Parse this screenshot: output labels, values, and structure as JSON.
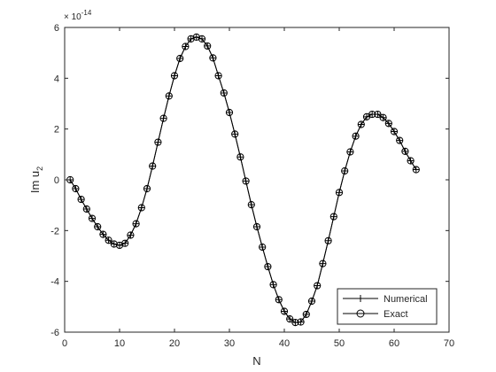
{
  "chart_data": {
    "type": "line",
    "xlabel": "N",
    "ylabel_main": "Im u",
    "ylabel_sub": "2",
    "exponent_prefix": "× 10",
    "exponent_power": "-14",
    "xlim": [
      0,
      70
    ],
    "ylim": [
      -6,
      6
    ],
    "xticks": [
      0,
      10,
      20,
      30,
      40,
      50,
      60,
      70
    ],
    "yticks": [
      -6,
      -4,
      -2,
      0,
      2,
      4,
      6
    ],
    "xtick_labels": [
      "0",
      "10",
      "20",
      "30",
      "40",
      "50",
      "60",
      "70"
    ],
    "ytick_labels": [
      "-6",
      "-4",
      "-2",
      "0",
      "2",
      "4",
      "6"
    ],
    "grid": false,
    "legend_position": "bottom-right",
    "series": [
      {
        "name": "Numerical",
        "marker": "plus",
        "x": [
          1,
          2,
          3,
          4,
          5,
          6,
          7,
          8,
          9,
          10,
          11,
          12,
          13,
          14,
          15,
          16,
          17,
          18,
          19,
          20,
          21,
          22,
          23,
          24,
          25,
          26,
          27,
          28,
          29,
          30,
          31,
          32,
          33,
          34,
          35,
          36,
          37,
          38,
          39,
          40,
          41,
          42,
          43,
          44,
          45,
          46,
          47,
          48,
          49,
          50,
          51,
          52,
          53,
          54,
          55,
          56,
          57,
          58,
          59,
          60,
          61,
          62,
          63,
          64
        ],
        "values": [
          0.0,
          -0.35,
          -0.77,
          -1.15,
          -1.52,
          -1.85,
          -2.15,
          -2.38,
          -2.53,
          -2.58,
          -2.5,
          -2.18,
          -1.73,
          -1.1,
          -0.35,
          0.54,
          1.48,
          2.42,
          3.3,
          4.1,
          4.78,
          5.25,
          5.55,
          5.62,
          5.55,
          5.27,
          4.8,
          4.1,
          3.42,
          2.65,
          1.8,
          0.9,
          -0.05,
          -0.98,
          -1.85,
          -2.65,
          -3.42,
          -4.13,
          -4.72,
          -5.18,
          -5.48,
          -5.62,
          -5.6,
          -5.3,
          -4.78,
          -4.17,
          -3.3,
          -2.4,
          -1.45,
          -0.5,
          0.35,
          1.1,
          1.72,
          2.18,
          2.48,
          2.58,
          2.58,
          2.45,
          2.22,
          1.9,
          1.55,
          1.12,
          0.75,
          0.4
        ]
      },
      {
        "name": "Exact",
        "marker": "circle",
        "x": [
          1,
          2,
          3,
          4,
          5,
          6,
          7,
          8,
          9,
          10,
          11,
          12,
          13,
          14,
          15,
          16,
          17,
          18,
          19,
          20,
          21,
          22,
          23,
          24,
          25,
          26,
          27,
          28,
          29,
          30,
          31,
          32,
          33,
          34,
          35,
          36,
          37,
          38,
          39,
          40,
          41,
          42,
          43,
          44,
          45,
          46,
          47,
          48,
          49,
          50,
          51,
          52,
          53,
          54,
          55,
          56,
          57,
          58,
          59,
          60,
          61,
          62,
          63,
          64
        ],
        "values": [
          0.0,
          -0.35,
          -0.77,
          -1.15,
          -1.52,
          -1.85,
          -2.15,
          -2.38,
          -2.53,
          -2.58,
          -2.5,
          -2.18,
          -1.73,
          -1.1,
          -0.35,
          0.54,
          1.48,
          2.42,
          3.3,
          4.1,
          4.78,
          5.25,
          5.55,
          5.62,
          5.55,
          5.27,
          4.8,
          4.1,
          3.42,
          2.65,
          1.8,
          0.9,
          -0.05,
          -0.98,
          -1.85,
          -2.65,
          -3.42,
          -4.13,
          -4.72,
          -5.18,
          -5.48,
          -5.62,
          -5.6,
          -5.3,
          -4.78,
          -4.17,
          -3.3,
          -2.4,
          -1.45,
          -0.5,
          0.35,
          1.1,
          1.72,
          2.18,
          2.48,
          2.58,
          2.58,
          2.45,
          2.22,
          1.9,
          1.55,
          1.12,
          0.75,
          0.4
        ]
      }
    ]
  }
}
